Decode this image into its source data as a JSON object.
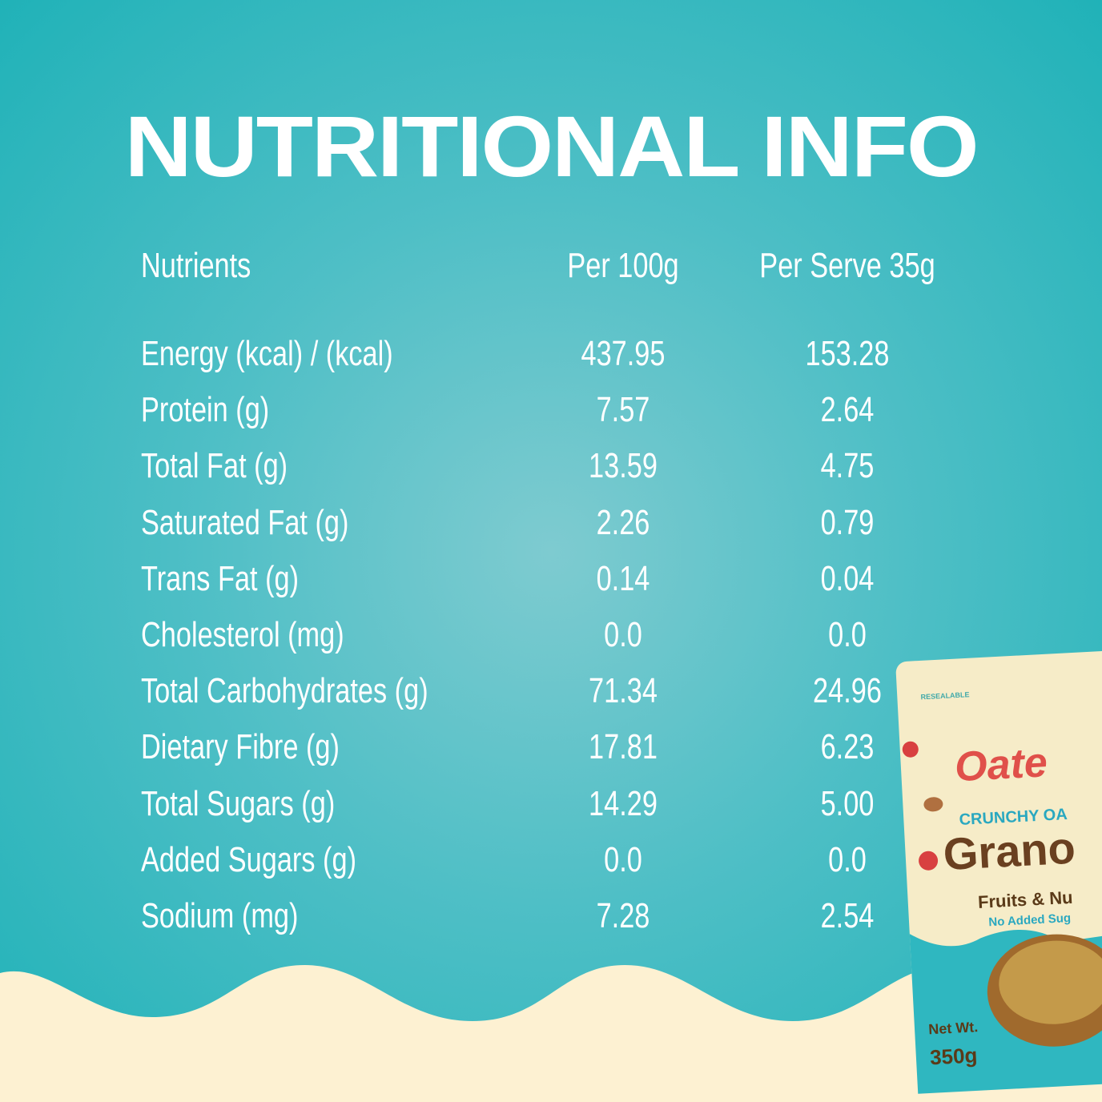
{
  "title": "NUTRITIONAL INFO",
  "table": {
    "header": [
      "Nutrients",
      "Per 100g",
      "Per Serve 35g"
    ],
    "rows": [
      [
        "Energy (kcal) / (kcal)",
        "437.95",
        "153.28"
      ],
      [
        "Protein (g)",
        "7.57",
        "2.64"
      ],
      [
        "Total Fat (g)",
        "13.59",
        "4.75"
      ],
      [
        "Saturated Fat (g)",
        "2.26",
        "0.79"
      ],
      [
        "Trans Fat (g)",
        "0.14",
        "0.04"
      ],
      [
        "Cholesterol (mg)",
        "0.0",
        "0.0"
      ],
      [
        "Total Carbohydrates (g)",
        "71.34",
        "24.96"
      ],
      [
        "Dietary Fibre (g)",
        "17.81",
        "6.23"
      ],
      [
        "Total Sugars (g)",
        "14.29",
        "5.00"
      ],
      [
        "Added Sugars (g)",
        "0.0",
        "0.0"
      ],
      [
        "Sodium (mg)",
        "7.28",
        "2.54"
      ]
    ]
  },
  "package": {
    "resealable": "RESEALABLE",
    "brand": "Oate",
    "tagline": "CRUNCHY OA",
    "product": "Grano",
    "variant": "Fruits & Nu",
    "claim": "No Added Sug",
    "net_weight_label": "Net Wt.",
    "net_weight": "350g"
  }
}
